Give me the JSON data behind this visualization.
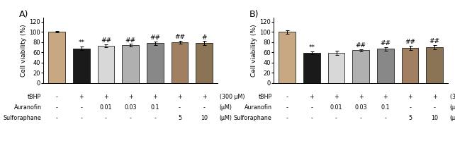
{
  "panel_A": {
    "values": [
      100,
      68,
      73,
      74,
      78,
      80,
      78
    ],
    "errors": [
      1.5,
      3.5,
      3.0,
      2.5,
      3.5,
      2.5,
      4.0
    ],
    "colors": [
      "#c8a882",
      "#1a1a1a",
      "#d8d8d8",
      "#b0b0b0",
      "#888888",
      "#a08060",
      "#8b7355"
    ],
    "sig_labels": [
      "",
      "**",
      "##",
      "##",
      "##",
      "##",
      "#"
    ],
    "label": "A)"
  },
  "panel_B": {
    "values": [
      100,
      59,
      59,
      64,
      67,
      69,
      70
    ],
    "errors": [
      3.5,
      3.0,
      3.5,
      2.5,
      3.5,
      4.0,
      4.0
    ],
    "colors": [
      "#c8a882",
      "#1a1a1a",
      "#d8d8d8",
      "#b0b0b0",
      "#888888",
      "#a08060",
      "#8b7355"
    ],
    "sig_labels": [
      "",
      "**",
      "",
      "##",
      "##",
      "##",
      "##"
    ],
    "label": "B)"
  },
  "ylim": [
    0,
    128
  ],
  "yticks": [
    0,
    20,
    40,
    60,
    80,
    100,
    120
  ],
  "ylabel": "Cell viability (%)",
  "row_labels": [
    "tBHP",
    "Auranofin",
    "Sulforaphane"
  ],
  "row_unit_labels": [
    "(300 μM)",
    "(μM)",
    "(μM)"
  ],
  "row_values_A": [
    [
      "-",
      "+",
      "+",
      "+",
      "+",
      "+",
      "+"
    ],
    [
      "-",
      "-",
      "0.01",
      "0.03",
      "0.1",
      "-",
      "-"
    ],
    [
      "-",
      "-",
      "-",
      "-",
      "-",
      "5",
      "10"
    ]
  ],
  "row_values_B": [
    [
      "-",
      "+",
      "+",
      "+",
      "+",
      "+",
      "+"
    ],
    [
      "-",
      "-",
      "0.01",
      "0.03",
      "0.1",
      "-",
      "-"
    ],
    [
      "-",
      "-",
      "-",
      "-",
      "-",
      "5",
      "10"
    ]
  ],
  "bar_width": 0.68,
  "fontsize_small": 5.8,
  "fontsize_sig": 6.5,
  "fontsize_ylabel": 6.5,
  "fontsize_tick": 6.0,
  "fontsize_panel": 9,
  "xlim_lo": -0.55,
  "xlim_hi": 6.55
}
